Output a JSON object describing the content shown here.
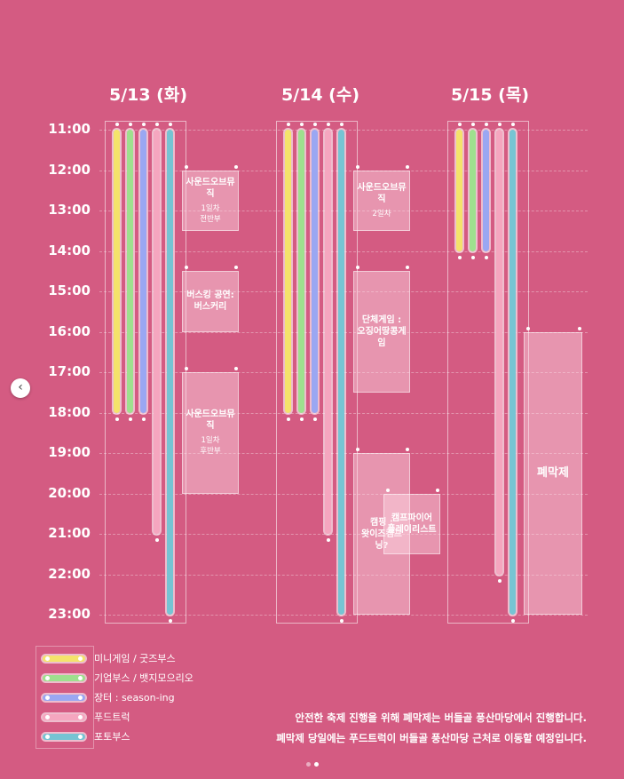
{
  "days": [
    {
      "label": "5/13 (화)"
    },
    {
      "label": "5/14 (수)"
    },
    {
      "label": "5/15 (목)"
    }
  ],
  "times": [
    "11:00",
    "12:00",
    "13:00",
    "14:00",
    "15:00",
    "16:00",
    "17:00",
    "18:00",
    "19:00",
    "20:00",
    "21:00",
    "22:00",
    "23:00"
  ],
  "categories": [
    {
      "name": "미니게임 / 굿즈부스",
      "color": "#f4e36b"
    },
    {
      "name": "기업부스 / 뱃지모으리오",
      "color": "#9ee08e"
    },
    {
      "name": "장터 : season-ing",
      "color": "#9aa7f2"
    },
    {
      "name": "푸드트럭",
      "color": "#f5a6bf"
    },
    {
      "name": "포토부스",
      "color": "#76c4d3"
    }
  ],
  "schedule": [
    {
      "day": 0,
      "bars": [
        {
          "cat": 0,
          "start": 11,
          "end": 18
        },
        {
          "cat": 1,
          "start": 11,
          "end": 18
        },
        {
          "cat": 2,
          "start": 11,
          "end": 18
        },
        {
          "cat": 3,
          "start": 11,
          "end": 21
        },
        {
          "cat": 4,
          "start": 11,
          "end": 23
        }
      ],
      "events": [
        {
          "title": "사운드오브뮤직",
          "sub": "1일차\n전반부",
          "start": 12,
          "end": 13.5,
          "col": "right"
        },
        {
          "title": "버스킹 공연:\n버스커리",
          "sub": "",
          "start": 14.5,
          "end": 16,
          "col": "right"
        },
        {
          "title": "사운드오브뮤직",
          "sub": "1일차\n후반부",
          "start": 17,
          "end": 20,
          "col": "right"
        }
      ]
    },
    {
      "day": 1,
      "bars": [
        {
          "cat": 0,
          "start": 11,
          "end": 18
        },
        {
          "cat": 1,
          "start": 11,
          "end": 18
        },
        {
          "cat": 2,
          "start": 11,
          "end": 18
        },
        {
          "cat": 3,
          "start": 11,
          "end": 21
        },
        {
          "cat": 4,
          "start": 11,
          "end": 23
        }
      ],
      "events": [
        {
          "title": "사운드오브뮤직",
          "sub": "2일차",
          "start": 12,
          "end": 13.5,
          "col": "right"
        },
        {
          "title": "단체게임 :\n오징어땅콩게임",
          "sub": "",
          "start": 14.5,
          "end": 17.5,
          "col": "right"
        },
        {
          "title": "캠핑 :\n왓이즈캠프닝?",
          "sub": "",
          "start": 19,
          "end": 23,
          "col": "right"
        },
        {
          "title": "캠프파이어\n플레이리스트",
          "sub": "",
          "start": 20,
          "end": 21.5,
          "col": "far"
        }
      ]
    },
    {
      "day": 2,
      "bars": [
        {
          "cat": 0,
          "start": 11,
          "end": 14
        },
        {
          "cat": 1,
          "start": 11,
          "end": 14
        },
        {
          "cat": 2,
          "start": 11,
          "end": 14
        },
        {
          "cat": 3,
          "start": 11,
          "end": 22
        },
        {
          "cat": 4,
          "start": 11,
          "end": 23
        }
      ],
      "events": [
        {
          "title": "폐막제",
          "sub": "",
          "start": 16,
          "end": 23,
          "col": "closing",
          "big": true
        }
      ]
    }
  ],
  "notes": [
    "안전한 축제 진행을 위해 폐막제는 버들골 풍산마당에서 진행합니다.",
    "폐막제 당일에는 푸드트럭이 버들골 풍산마당 근처로 이동할 예정입니다."
  ],
  "nav": {
    "prev_icon": "‹",
    "icon_name": "chevron-left-icon"
  },
  "pagination": {
    "current": 2,
    "total": 2
  }
}
